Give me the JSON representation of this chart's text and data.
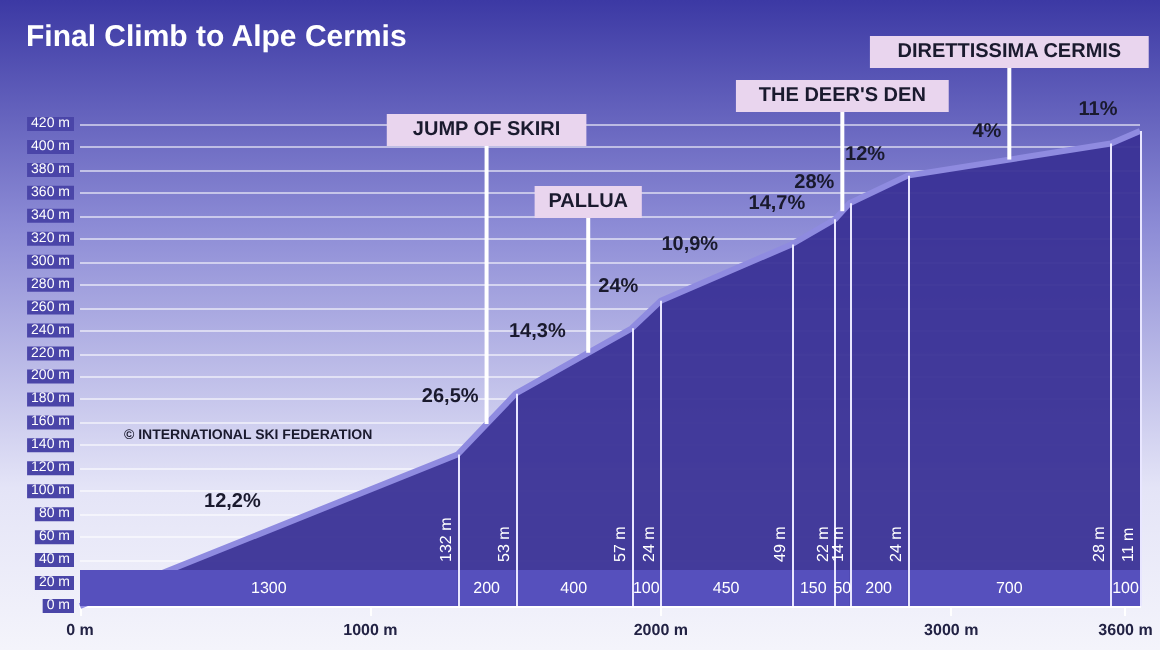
{
  "chart_data": {
    "type": "area",
    "title": "Final Climb to Alpe Cermis",
    "x": [
      0,
      1300,
      1500,
      1900,
      2000,
      2450,
      2600,
      2650,
      2850,
      3550,
      3650
    ],
    "values": [
      0,
      132,
      185,
      242,
      266,
      315,
      337,
      351,
      375,
      403,
      414
    ],
    "color": "#3a3196",
    "xlim": [
      0,
      3650
    ],
    "xticks": [
      {
        "value": 0,
        "label": "0 m"
      },
      {
        "value": 1000,
        "label": "1000 m"
      },
      {
        "value": 2000,
        "label": "2000 m"
      },
      {
        "value": 3000,
        "label": "3000 m"
      },
      {
        "value": 3600,
        "label": "3600 m"
      }
    ],
    "ylim": [
      0,
      420
    ],
    "yticks": [
      {
        "value": 0,
        "label": "0 m"
      },
      {
        "value": 20,
        "label": "20 m"
      },
      {
        "value": 40,
        "label": "40 m"
      },
      {
        "value": 60,
        "label": "60 m"
      },
      {
        "value": 80,
        "label": "80 m"
      },
      {
        "value": 100,
        "label": "100 m"
      },
      {
        "value": 120,
        "label": "120 m"
      },
      {
        "value": 140,
        "label": "140 m"
      },
      {
        "value": 160,
        "label": "160 m"
      },
      {
        "value": 180,
        "label": "180 m"
      },
      {
        "value": 200,
        "label": "200 m"
      },
      {
        "value": 220,
        "label": "220 m"
      },
      {
        "value": 240,
        "label": "240 m"
      },
      {
        "value": 260,
        "label": "260 m"
      },
      {
        "value": 280,
        "label": "280 m"
      },
      {
        "value": 300,
        "label": "300 m"
      },
      {
        "value": 320,
        "label": "320 m"
      },
      {
        "value": 340,
        "label": "340 m"
      },
      {
        "value": 360,
        "label": "360 m"
      },
      {
        "value": 380,
        "label": "380 m"
      },
      {
        "value": 400,
        "label": "400 m"
      },
      {
        "value": 420,
        "label": "420 m"
      }
    ],
    "grid": "y",
    "ref_lines": [
      {
        "axis": "x",
        "value": 1300,
        "label": "132 m"
      },
      {
        "axis": "x",
        "value": 1500,
        "label": "53 m"
      },
      {
        "axis": "x",
        "value": 1900,
        "label": "57 m"
      },
      {
        "axis": "x",
        "value": 2000,
        "label": "24 m"
      },
      {
        "axis": "x",
        "value": 2450,
        "label": "49 m"
      },
      {
        "axis": "x",
        "value": 2600,
        "label": "22 m"
      },
      {
        "axis": "x",
        "value": 2650,
        "label": "14 m"
      },
      {
        "axis": "x",
        "value": 2850,
        "label": "24 m"
      },
      {
        "axis": "x",
        "value": 3550,
        "label": "28 m"
      },
      {
        "axis": "x",
        "value": 3650,
        "label": "11 m"
      },
      {
        "axis": "x",
        "value": 1400,
        "label": "JUMP OF SKIRI",
        "color": "#ffffff"
      },
      {
        "axis": "x",
        "value": 1750,
        "label": "PALLUA",
        "color": "#ffffff"
      },
      {
        "axis": "x",
        "value": 2625,
        "label": "THE DEER'S DEN",
        "color": "#ffffff"
      },
      {
        "axis": "x",
        "value": 3200,
        "label": "DIRETTISSIMA CERMIS",
        "color": "#ffffff"
      }
    ],
    "bands": [
      {
        "axis": "x",
        "from": 0,
        "to": 1300,
        "label": "1300"
      },
      {
        "axis": "x",
        "from": 1300,
        "to": 1500,
        "label": "200"
      },
      {
        "axis": "x",
        "from": 1500,
        "to": 1900,
        "label": "400"
      },
      {
        "axis": "x",
        "from": 1900,
        "to": 2000,
        "label": "100"
      },
      {
        "axis": "x",
        "from": 2000,
        "to": 2450,
        "label": "450"
      },
      {
        "axis": "x",
        "from": 2450,
        "to": 2600,
        "label": "150"
      },
      {
        "axis": "x",
        "from": 2600,
        "to": 2650,
        "label": "50"
      },
      {
        "axis": "x",
        "from": 2650,
        "to": 2850,
        "label": "200"
      },
      {
        "axis": "x",
        "from": 2850,
        "to": 3550,
        "label": "700"
      },
      {
        "axis": "x",
        "from": 3550,
        "to": 3650,
        "label": "100"
      }
    ],
    "annotations": [
      {
        "text": "12,2%",
        "x": 650,
        "y": 66
      },
      {
        "text": "26,5%",
        "x": 1400,
        "y": 158
      },
      {
        "text": "14,3%",
        "x": 1700,
        "y": 214
      },
      {
        "text": "24%",
        "x": 1950,
        "y": 254
      },
      {
        "text": "10,9%",
        "x": 2225,
        "y": 290
      },
      {
        "text": "14,7%",
        "x": 2525,
        "y": 326
      },
      {
        "text": "28%",
        "x": 2625,
        "y": 344
      },
      {
        "text": "12%",
        "x": 2800,
        "y": 369
      },
      {
        "text": "4%",
        "x": 3200,
        "y": 389
      },
      {
        "text": "11%",
        "x": 3600,
        "y": 408
      },
      "© INTERNATIONAL SKI FEDERATION"
    ]
  }
}
